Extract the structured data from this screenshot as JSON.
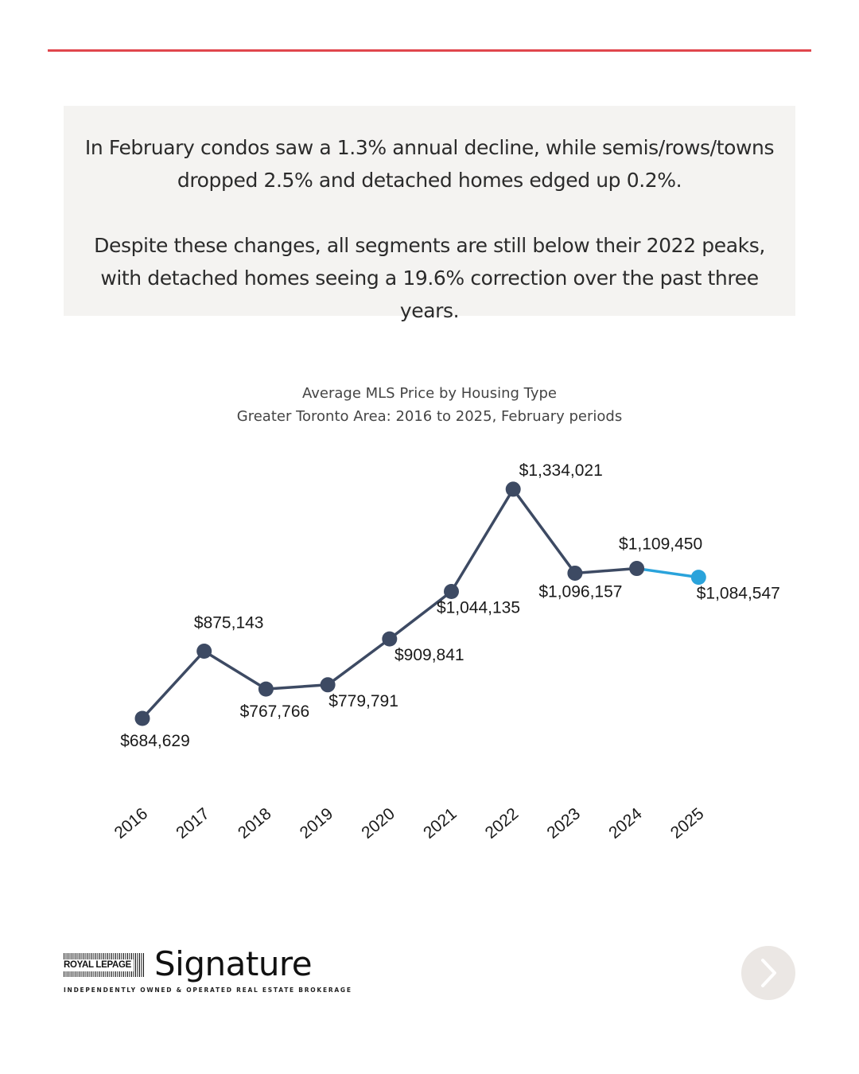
{
  "callout": {
    "paragraph1": "In February condos saw a 1.3% annual decline, while semis/rows/towns dropped 2.5% and detached homes edged up 0.2%.",
    "paragraph2": "Despite these changes, all segments are still below their 2022 peaks, with detached homes seeing a 19.6% correction over the past three years."
  },
  "chart_data": {
    "type": "line",
    "title": "Average MLS Price by Housing Type",
    "subtitle": "Greater Toronto Area: 2016 to 2025, February periods",
    "categories": [
      "2016",
      "2017",
      "2018",
      "2019",
      "2020",
      "2021",
      "2022",
      "2023",
      "2024",
      "2025"
    ],
    "series": [
      {
        "values": [
          684629,
          875143,
          767766,
          779791,
          909841,
          1044135,
          1334021,
          1096157,
          1109450,
          1084547
        ],
        "labels": [
          "$684,629",
          "$875,143",
          "$767,766",
          "$779,791",
          "$909,841",
          "$1,044,135",
          "$1,334,021",
          "$1,096,157",
          "$1,109,450",
          "$1,084,547"
        ],
        "color": "#3d4a63",
        "highlight_last_color": "#2aa3db"
      }
    ],
    "grid": false,
    "legend": "none"
  },
  "logo": {
    "brand": "ROYAL LEPAGE",
    "name": "Signature",
    "tagline": "INDEPENDENTLY OWNED & OPERATED REAL ESTATE BROKERAGE"
  },
  "colors": {
    "accent_rule": "#e0464d",
    "callout_bg": "#f4f3f1",
    "next_button_bg": "#ebe7e4"
  },
  "icons": {
    "next": "chevron-right-icon"
  }
}
